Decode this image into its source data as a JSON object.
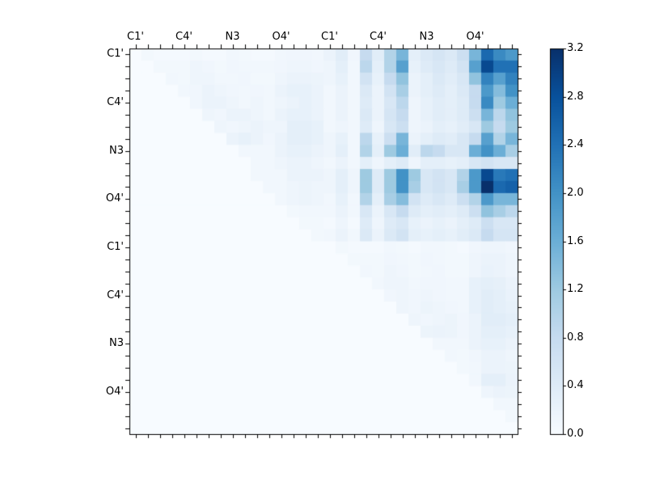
{
  "chart_data": {
    "type": "heatmap",
    "title": "",
    "xlabel": "",
    "ylabel": "",
    "n_rows": 32,
    "n_cols": 32,
    "tick_group_size": 4,
    "x_tick_labels": [
      "C1'",
      "C4'",
      "N3",
      "O4'",
      "C1'",
      "C4'",
      "N3",
      "O4'"
    ],
    "y_tick_labels": [
      "C1'",
      "C4'",
      "N3",
      "O4'",
      "C1'",
      "C4'",
      "N3",
      "O4'"
    ],
    "vmin": 0.0,
    "vmax": 3.2,
    "colormap": {
      "name": "Blues",
      "stops": [
        [
          0.0,
          "#f7fbff"
        ],
        [
          0.125,
          "#deebf7"
        ],
        [
          0.25,
          "#c6dbef"
        ],
        [
          0.375,
          "#9ecae1"
        ],
        [
          0.5,
          "#6baed6"
        ],
        [
          0.625,
          "#4292c6"
        ],
        [
          0.75,
          "#2171b5"
        ],
        [
          0.875,
          "#08519c"
        ],
        [
          1.0,
          "#08306b"
        ]
      ]
    },
    "colorbar": {
      "position": "right",
      "tick_values": [
        0.0,
        0.4,
        0.8,
        1.2,
        1.6,
        2.0,
        2.4,
        2.8,
        3.2
      ],
      "tick_labels": [
        "0.0",
        "0.4",
        "0.8",
        "1.2",
        "1.6",
        "2.0",
        "2.4",
        "2.8",
        "3.2"
      ]
    },
    "axis_color": "#000000",
    "matrix": [
      [
        0,
        0.08,
        0.05,
        0.05,
        0.05,
        0.08,
        0.05,
        0.05,
        0.1,
        0.08,
        0.05,
        0.05,
        0.1,
        0.12,
        0.12,
        0.1,
        0.2,
        0.35,
        0.12,
        0.8,
        0.35,
        1.0,
        1.5,
        0.3,
        0.45,
        0.55,
        0.45,
        0.7,
        1.5,
        2.5,
        2.1,
        1.9
      ],
      [
        0,
        0,
        0.08,
        0.08,
        0.08,
        0.15,
        0.12,
        0.08,
        0.12,
        0.1,
        0.1,
        0.1,
        0.12,
        0.15,
        0.15,
        0.12,
        0.15,
        0.3,
        0.1,
        0.9,
        0.3,
        1.0,
        1.8,
        0.25,
        0.4,
        0.5,
        0.4,
        0.6,
        1.8,
        2.9,
        2.4,
        2.4
      ],
      [
        0,
        0,
        0,
        0.1,
        0.08,
        0.15,
        0.15,
        0.1,
        0.1,
        0.12,
        0.08,
        0.08,
        0.15,
        0.2,
        0.2,
        0.18,
        0.15,
        0.25,
        0.1,
        0.6,
        0.25,
        0.8,
        1.3,
        0.2,
        0.3,
        0.45,
        0.35,
        0.5,
        1.3,
        2.2,
        1.8,
        2.2
      ],
      [
        0,
        0,
        0,
        0,
        0.1,
        0.12,
        0.2,
        0.15,
        0.12,
        0.1,
        0.12,
        0.1,
        0.2,
        0.25,
        0.25,
        0.2,
        0.1,
        0.2,
        0.1,
        0.45,
        0.2,
        0.6,
        1.1,
        0.2,
        0.3,
        0.4,
        0.3,
        0.45,
        0.8,
        1.9,
        1.4,
        2.0
      ],
      [
        0,
        0,
        0,
        0,
        0,
        0.12,
        0.2,
        0.2,
        0.15,
        0.1,
        0.15,
        0.1,
        0.15,
        0.2,
        0.25,
        0.2,
        0.1,
        0.2,
        0.1,
        0.4,
        0.2,
        0.5,
        0.9,
        0.15,
        0.25,
        0.35,
        0.3,
        0.4,
        0.8,
        2.1,
        1.2,
        1.6
      ],
      [
        0,
        0,
        0,
        0,
        0,
        0,
        0.15,
        0.12,
        0.2,
        0.2,
        0.15,
        0.1,
        0.2,
        0.25,
        0.25,
        0.2,
        0.1,
        0.2,
        0.1,
        0.45,
        0.2,
        0.55,
        0.8,
        0.15,
        0.25,
        0.35,
        0.3,
        0.4,
        0.7,
        1.5,
        0.9,
        1.3
      ],
      [
        0,
        0,
        0,
        0,
        0,
        0,
        0,
        0.15,
        0.12,
        0.15,
        0.2,
        0.15,
        0.15,
        0.3,
        0.3,
        0.25,
        0.1,
        0.15,
        0.1,
        0.4,
        0.15,
        0.5,
        0.7,
        0.15,
        0.2,
        0.3,
        0.25,
        0.35,
        0.5,
        1.2,
        0.8,
        1.2
      ],
      [
        0,
        0,
        0,
        0,
        0,
        0,
        0,
        0,
        0.2,
        0.25,
        0.2,
        0.12,
        0.2,
        0.3,
        0.3,
        0.25,
        0.15,
        0.25,
        0.1,
        0.9,
        0.25,
        0.7,
        1.5,
        0.2,
        0.3,
        0.4,
        0.35,
        0.5,
        0.8,
        1.8,
        1.0,
        1.5
      ],
      [
        0,
        0,
        0,
        0,
        0,
        0,
        0,
        0,
        0,
        0.1,
        0.1,
        0.1,
        0.2,
        0.25,
        0.25,
        0.2,
        0.15,
        0.3,
        0.1,
        1.0,
        0.3,
        1.2,
        1.6,
        0.35,
        0.9,
        0.8,
        0.5,
        0.5,
        1.6,
        2.0,
        1.6,
        1.1
      ],
      [
        0,
        0,
        0,
        0,
        0,
        0,
        0,
        0,
        0,
        0,
        0.1,
        0.1,
        0.15,
        0.2,
        0.2,
        0.15,
        0.1,
        0.2,
        0.1,
        0.3,
        0.15,
        0.3,
        0.4,
        0.15,
        0.3,
        0.3,
        0.25,
        0.3,
        0.5,
        0.6,
        0.5,
        0.5
      ],
      [
        0,
        0,
        0,
        0,
        0,
        0,
        0,
        0,
        0,
        0,
        0.1,
        0.1,
        0.1,
        0.2,
        0.2,
        0.2,
        0.15,
        0.3,
        0.15,
        1.2,
        0.4,
        1.2,
        2.0,
        1.2,
        0.5,
        0.6,
        0.5,
        1.0,
        1.9,
        2.9,
        2.3,
        2.4
      ],
      [
        0,
        0,
        0,
        0,
        0,
        0,
        0,
        0,
        0,
        0,
        0,
        0.1,
        0.1,
        0.15,
        0.18,
        0.15,
        0.15,
        0.3,
        0.15,
        1.2,
        0.4,
        1.2,
        2.0,
        1.1,
        0.5,
        0.6,
        0.5,
        1.1,
        1.9,
        3.2,
        2.5,
        2.6
      ],
      [
        0,
        0,
        0,
        0,
        0,
        0,
        0,
        0,
        0,
        0,
        0,
        0,
        0.1,
        0.15,
        0.18,
        0.15,
        0.1,
        0.25,
        0.1,
        1.0,
        0.3,
        1.1,
        1.4,
        0.6,
        0.4,
        0.5,
        0.4,
        0.7,
        1.0,
        1.9,
        1.5,
        1.5
      ],
      [
        0,
        0,
        0,
        0,
        0,
        0,
        0,
        0,
        0,
        0,
        0,
        0,
        0,
        0.08,
        0.1,
        0.1,
        0.1,
        0.2,
        0.1,
        0.5,
        0.2,
        0.5,
        0.8,
        0.4,
        0.3,
        0.35,
        0.3,
        0.4,
        0.7,
        1.3,
        1.1,
        0.9
      ],
      [
        0,
        0,
        0,
        0,
        0,
        0,
        0,
        0,
        0,
        0,
        0,
        0,
        0,
        0,
        0.08,
        0.08,
        0.05,
        0.15,
        0.05,
        0.4,
        0.15,
        0.4,
        0.5,
        0.25,
        0.2,
        0.25,
        0.2,
        0.3,
        0.4,
        0.7,
        0.5,
        0.5
      ],
      [
        0,
        0,
        0,
        0,
        0,
        0,
        0,
        0,
        0,
        0,
        0,
        0,
        0,
        0,
        0,
        0.08,
        0.1,
        0.2,
        0.1,
        0.45,
        0.2,
        0.45,
        0.6,
        0.3,
        0.25,
        0.3,
        0.25,
        0.35,
        0.45,
        0.8,
        0.55,
        0.55
      ],
      [
        0,
        0,
        0,
        0,
        0,
        0,
        0,
        0,
        0,
        0,
        0,
        0,
        0,
        0,
        0,
        0,
        0,
        0.08,
        0.05,
        0.05,
        0.05,
        0.1,
        0.08,
        0.05,
        0.1,
        0.1,
        0.08,
        0.05,
        0.12,
        0.15,
        0.15,
        0.12
      ],
      [
        0,
        0,
        0,
        0,
        0,
        0,
        0,
        0,
        0,
        0,
        0,
        0,
        0,
        0,
        0,
        0,
        0,
        0,
        0.08,
        0.08,
        0.08,
        0.12,
        0.1,
        0.08,
        0.12,
        0.1,
        0.08,
        0.08,
        0.15,
        0.2,
        0.2,
        0.15
      ],
      [
        0,
        0,
        0,
        0,
        0,
        0,
        0,
        0,
        0,
        0,
        0,
        0,
        0,
        0,
        0,
        0,
        0,
        0,
        0,
        0.1,
        0.08,
        0.15,
        0.12,
        0.08,
        0.1,
        0.12,
        0.08,
        0.08,
        0.15,
        0.22,
        0.2,
        0.15
      ],
      [
        0,
        0,
        0,
        0,
        0,
        0,
        0,
        0,
        0,
        0,
        0,
        0,
        0,
        0,
        0,
        0,
        0,
        0,
        0,
        0,
        0.1,
        0.15,
        0.15,
        0.1,
        0.12,
        0.12,
        0.1,
        0.1,
        0.25,
        0.3,
        0.28,
        0.2
      ],
      [
        0,
        0,
        0,
        0,
        0,
        0,
        0,
        0,
        0,
        0,
        0,
        0,
        0,
        0,
        0,
        0,
        0,
        0,
        0,
        0,
        0,
        0.12,
        0.15,
        0.12,
        0.15,
        0.12,
        0.1,
        0.1,
        0.25,
        0.35,
        0.3,
        0.22
      ],
      [
        0,
        0,
        0,
        0,
        0,
        0,
        0,
        0,
        0,
        0,
        0,
        0,
        0,
        0,
        0,
        0,
        0,
        0,
        0,
        0,
        0,
        0,
        0.15,
        0.12,
        0.18,
        0.15,
        0.12,
        0.1,
        0.25,
        0.35,
        0.3,
        0.25
      ],
      [
        0,
        0,
        0,
        0,
        0,
        0,
        0,
        0,
        0,
        0,
        0,
        0,
        0,
        0,
        0,
        0,
        0,
        0,
        0,
        0,
        0,
        0,
        0,
        0.15,
        0.12,
        0.15,
        0.18,
        0.12,
        0.2,
        0.35,
        0.35,
        0.3
      ],
      [
        0,
        0,
        0,
        0,
        0,
        0,
        0,
        0,
        0,
        0,
        0,
        0,
        0,
        0,
        0,
        0,
        0,
        0,
        0,
        0,
        0,
        0,
        0,
        0,
        0.18,
        0.2,
        0.18,
        0.12,
        0.2,
        0.3,
        0.3,
        0.25
      ],
      [
        0,
        0,
        0,
        0,
        0,
        0,
        0,
        0,
        0,
        0,
        0,
        0,
        0,
        0,
        0,
        0,
        0,
        0,
        0,
        0,
        0,
        0,
        0,
        0,
        0,
        0.1,
        0.1,
        0.1,
        0.2,
        0.25,
        0.25,
        0.2
      ],
      [
        0,
        0,
        0,
        0,
        0,
        0,
        0,
        0,
        0,
        0,
        0,
        0,
        0,
        0,
        0,
        0,
        0,
        0,
        0,
        0,
        0,
        0,
        0,
        0,
        0,
        0,
        0.1,
        0.08,
        0.12,
        0.2,
        0.2,
        0.15
      ],
      [
        0,
        0,
        0,
        0,
        0,
        0,
        0,
        0,
        0,
        0,
        0,
        0,
        0,
        0,
        0,
        0,
        0,
        0,
        0,
        0,
        0,
        0,
        0,
        0,
        0,
        0,
        0,
        0.08,
        0.1,
        0.2,
        0.2,
        0.18
      ],
      [
        0,
        0,
        0,
        0,
        0,
        0,
        0,
        0,
        0,
        0,
        0,
        0,
        0,
        0,
        0,
        0,
        0,
        0,
        0,
        0,
        0,
        0,
        0,
        0,
        0,
        0,
        0,
        0,
        0.1,
        0.3,
        0.3,
        0.2
      ],
      [
        0,
        0,
        0,
        0,
        0,
        0,
        0,
        0,
        0,
        0,
        0,
        0,
        0,
        0,
        0,
        0,
        0,
        0,
        0,
        0,
        0,
        0,
        0,
        0,
        0,
        0,
        0,
        0,
        0,
        0.15,
        0.2,
        0.18
      ],
      [
        0,
        0,
        0,
        0,
        0,
        0,
        0,
        0,
        0,
        0,
        0,
        0,
        0,
        0,
        0,
        0,
        0,
        0,
        0,
        0,
        0,
        0,
        0,
        0,
        0,
        0,
        0,
        0,
        0,
        0,
        0.1,
        0.1
      ],
      [
        0,
        0,
        0,
        0,
        0,
        0,
        0,
        0,
        0,
        0,
        0,
        0,
        0,
        0,
        0,
        0,
        0,
        0,
        0,
        0,
        0,
        0,
        0,
        0,
        0,
        0,
        0,
        0,
        0,
        0,
        0,
        0.08
      ],
      [
        0,
        0,
        0,
        0,
        0,
        0,
        0,
        0,
        0,
        0,
        0,
        0,
        0,
        0,
        0,
        0,
        0,
        0,
        0,
        0,
        0,
        0,
        0,
        0,
        0,
        0,
        0,
        0,
        0,
        0,
        0,
        0
      ]
    ]
  },
  "layout_colors": {
    "background": "#ffffff",
    "spine": "#000000",
    "text": "#000000"
  }
}
